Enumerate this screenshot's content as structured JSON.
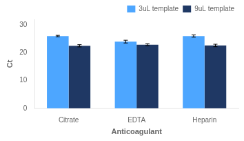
{
  "chart_data": {
    "type": "bar",
    "categories": [
      "Citrate",
      "EDTA",
      "Heparin"
    ],
    "series": [
      {
        "name": "3uL template",
        "color": "#4da6ff",
        "values": [
          26.0,
          24.0,
          26.0
        ],
        "errors": [
          0.25,
          0.5,
          0.4
        ]
      },
      {
        "name": "9uL template",
        "color": "#1f3864",
        "values": [
          22.5,
          22.9,
          22.6
        ],
        "errors": [
          0.4,
          0.35,
          0.45
        ]
      }
    ],
    "xlabel": "Anticoagulant",
    "ylabel": "Ct",
    "ylim": [
      0,
      32
    ],
    "yticks": [
      0,
      10,
      20,
      30
    ],
    "legend": "upper right",
    "grid": false
  }
}
